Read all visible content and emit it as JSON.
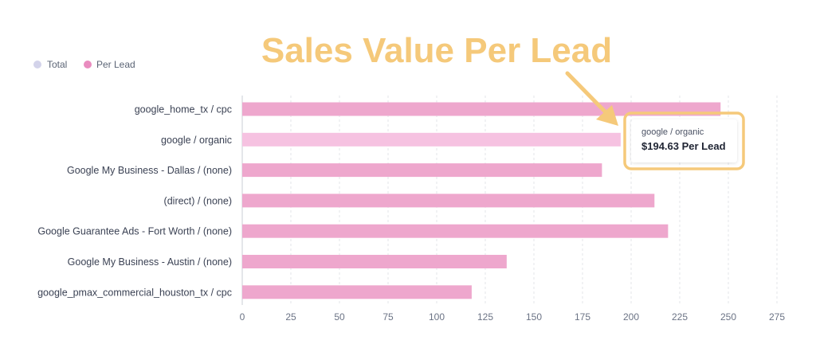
{
  "headline": "Sales Value Per Lead",
  "legend": [
    {
      "label": "Total",
      "color": "#d3d3ea"
    },
    {
      "label": "Per Lead",
      "color": "#e98cbf"
    }
  ],
  "tooltip": {
    "category": "google / organic",
    "value_text": "$194.63 Per Lead"
  },
  "colors": {
    "bar": "#eea7cd",
    "bar_highlight": "#f6c2e1",
    "annotation": "#f5c97a"
  },
  "chart_data": {
    "type": "bar",
    "orientation": "horizontal",
    "title": "",
    "xlabel": "",
    "ylabel": "",
    "categories": [
      "google_home_tx / cpc",
      "google / organic",
      "Google My Business - Dallas / (none)",
      "(direct) / (none)",
      "Google Guarantee Ads - Fort Worth / (none)",
      "Google My Business - Austin / (none)",
      "google_pmax_commercial_houston_tx / cpc"
    ],
    "series": [
      {
        "name": "Per Lead",
        "values": [
          246,
          194.63,
          185,
          212,
          219,
          136,
          118
        ]
      }
    ],
    "highlighted_category": "google / organic",
    "xlim": [
      0,
      275
    ],
    "xticks": [
      0,
      25,
      50,
      75,
      100,
      125,
      150,
      175,
      200,
      225,
      250,
      275
    ],
    "grid": "vertical-dashed",
    "legend_position": "top-left"
  }
}
